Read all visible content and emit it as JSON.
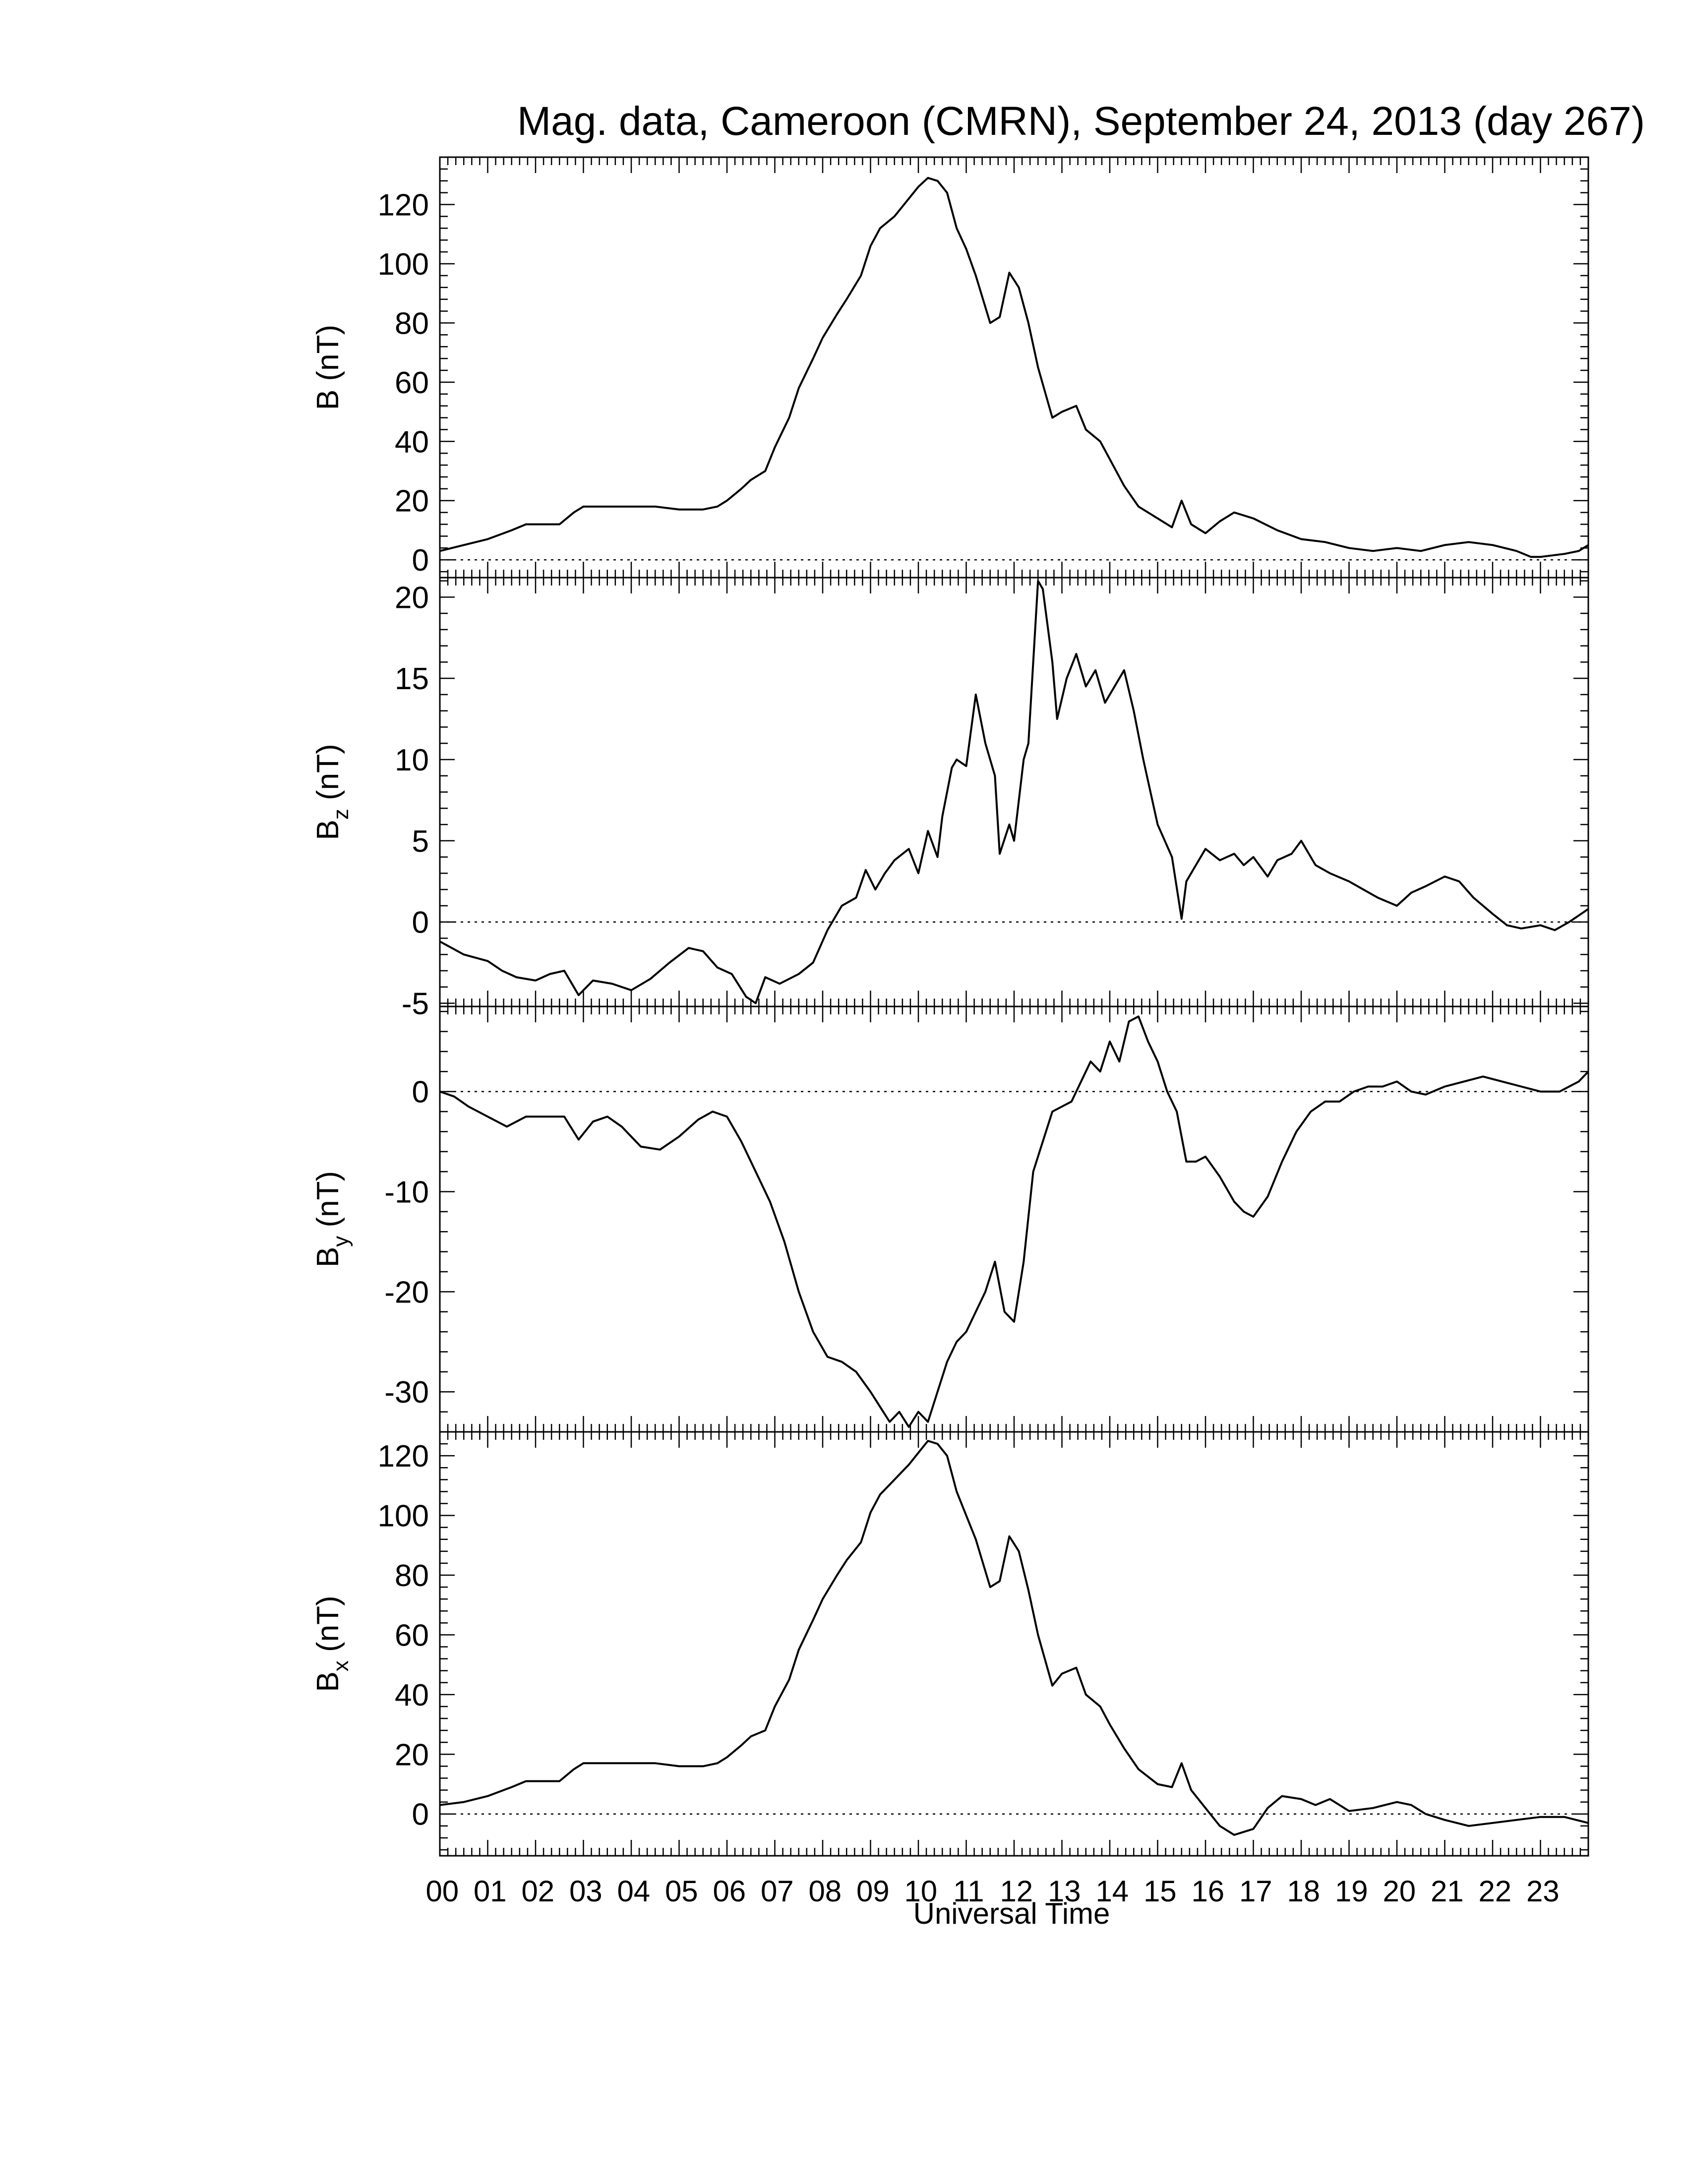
{
  "page": {
    "title": "Mag. data, Cameroon (CMRN), September 24, 2013 (day 267)"
  },
  "chart_data": {
    "type": "line",
    "title": "Mag. data, Cameroon (CMRN), September 24, 2013 (day 267)",
    "xlabel": "Universal Time",
    "xlim": [
      0,
      24
    ],
    "x_tick_labels": [
      "00",
      "01",
      "02",
      "03",
      "04",
      "05",
      "06",
      "07",
      "08",
      "09",
      "10",
      "11",
      "12",
      "13",
      "14",
      "15",
      "16",
      "17",
      "18",
      "19",
      "20",
      "21",
      "22",
      "23"
    ],
    "line_color": "#000000",
    "zero_line": "dotted",
    "panels": [
      {
        "ylabel": "B (nT)",
        "ylabel_main": "B",
        "ylabel_sub": "",
        "ylim": [
          -6,
          136
        ],
        "yticks": [
          0,
          20,
          40,
          60,
          80,
          100,
          120
        ],
        "ytick_labels": [
          "0",
          "20",
          "40",
          "60",
          "80",
          "100",
          "120"
        ],
        "series": [
          {
            "x": [
              0,
              0.5,
              1,
              1.5,
              1.8,
              2,
              2.5,
              2.8,
              3,
              3.5,
              4,
              4.5,
              5,
              5.5,
              5.8,
              6,
              6.3,
              6.5,
              6.8,
              7,
              7.3,
              7.5,
              7.8,
              8,
              8.3,
              8.5,
              8.8,
              9,
              9.2,
              9.5,
              9.8,
              10,
              10.2,
              10.4,
              10.6,
              10.8,
              11,
              11.2,
              11.5,
              11.7,
              11.9,
              12.1,
              12.3,
              12.5,
              12.8,
              13,
              13.3,
              13.5,
              13.8,
              14,
              14.3,
              14.6,
              15,
              15.3,
              15.5,
              15.7,
              16,
              16.3,
              16.6,
              17,
              17.5,
              18,
              18.5,
              19,
              19.5,
              20,
              20.5,
              21,
              21.5,
              22,
              22.5,
              22.8,
              23,
              23.5,
              23.8,
              24
            ],
            "y": [
              3,
              5,
              7,
              10,
              12,
              12,
              12,
              16,
              18,
              18,
              18,
              18,
              17,
              17,
              18,
              20,
              24,
              27,
              30,
              38,
              48,
              58,
              68,
              75,
              83,
              88,
              96,
              106,
              112,
              116,
              122,
              126,
              129,
              128,
              124,
              112,
              105,
              96,
              80,
              82,
              97,
              92,
              80,
              65,
              48,
              50,
              52,
              44,
              40,
              34,
              25,
              18,
              14,
              11,
              20,
              12,
              9,
              13,
              16,
              14,
              10,
              7,
              6,
              4,
              3,
              4,
              3,
              5,
              6,
              5,
              3,
              1,
              1,
              2,
              3,
              5
            ]
          }
        ]
      },
      {
        "ylabel": "Bz (nT)",
        "ylabel_main": "B",
        "ylabel_sub": "z",
        "ylim": [
          -5.2,
          21.2
        ],
        "yticks": [
          -5,
          0,
          5,
          10,
          15,
          20
        ],
        "ytick_labels": [
          "-5",
          "0",
          "5",
          "10",
          "15",
          "20"
        ],
        "series": [
          {
            "x": [
              0,
              0.5,
              1,
              1.3,
              1.6,
              2,
              2.3,
              2.6,
              2.9,
              3.2,
              3.6,
              4,
              4.4,
              4.8,
              5.2,
              5.5,
              5.8,
              6.1,
              6.4,
              6.6,
              6.8,
              7.1,
              7.5,
              7.8,
              8.1,
              8.4,
              8.7,
              8.9,
              9.1,
              9.3,
              9.5,
              9.8,
              10,
              10.2,
              10.4,
              10.5,
              10.7,
              10.8,
              11,
              11.2,
              11.4,
              11.6,
              11.7,
              11.9,
              12,
              12.2,
              12.3,
              12.5,
              12.6,
              12.8,
              12.9,
              13.1,
              13.3,
              13.5,
              13.7,
              13.9,
              14.1,
              14.3,
              14.5,
              14.7,
              15,
              15.3,
              15.5,
              15.6,
              15.8,
              16,
              16.3,
              16.6,
              16.8,
              17,
              17.3,
              17.5,
              17.8,
              18,
              18.3,
              18.6,
              19,
              19.3,
              19.6,
              20,
              20.3,
              20.6,
              21,
              21.3,
              21.6,
              22,
              22.3,
              22.6,
              23,
              23.3,
              23.6,
              24
            ],
            "y": [
              -1.2,
              -2,
              -2.4,
              -3,
              -3.4,
              -3.6,
              -3.2,
              -3,
              -4.5,
              -3.6,
              -3.8,
              -4.2,
              -3.5,
              -2.5,
              -1.6,
              -1.8,
              -2.8,
              -3.2,
              -4.6,
              -5,
              -3.4,
              -3.8,
              -3.2,
              -2.5,
              -0.5,
              1,
              1.5,
              3.2,
              2,
              3,
              3.8,
              4.5,
              3,
              5.6,
              4,
              6.5,
              9.5,
              10,
              9.6,
              14,
              11,
              9,
              4.2,
              6,
              5,
              10,
              11,
              21,
              20.5,
              16,
              12.5,
              15,
              16.5,
              14.5,
              15.5,
              13.5,
              14.5,
              15.5,
              13,
              10,
              6,
              4,
              0.2,
              2.5,
              3.5,
              4.5,
              3.8,
              4.2,
              3.5,
              4,
              2.8,
              3.8,
              4.2,
              5,
              3.5,
              3,
              2.5,
              2,
              1.5,
              1,
              1.8,
              2.2,
              2.8,
              2.5,
              1.5,
              0.5,
              -0.2,
              -0.4,
              -0.2,
              -0.5,
              0,
              0.8
            ]
          }
        ]
      },
      {
        "ylabel": "By (nT)",
        "ylabel_main": "B",
        "ylabel_sub": "y",
        "ylim": [
          -34,
          8.5
        ],
        "yticks": [
          -30,
          -20,
          -10,
          0
        ],
        "ytick_labels": [
          "-30",
          "-20",
          "-10",
          "0"
        ],
        "series": [
          {
            "x": [
              0,
              0.3,
              0.6,
              1,
              1.4,
              1.8,
              2.2,
              2.6,
              2.9,
              3.2,
              3.5,
              3.8,
              4.2,
              4.6,
              5,
              5.4,
              5.7,
              6,
              6.3,
              6.6,
              6.9,
              7.2,
              7.5,
              7.8,
              8.1,
              8.4,
              8.7,
              9,
              9.2,
              9.4,
              9.6,
              9.8,
              10,
              10.2,
              10.4,
              10.6,
              10.8,
              11,
              11.2,
              11.4,
              11.6,
              11.8,
              12,
              12.2,
              12.4,
              12.6,
              12.8,
              13,
              13.2,
              13.4,
              13.6,
              13.8,
              14,
              14.2,
              14.4,
              14.6,
              14.8,
              15,
              15.2,
              15.4,
              15.6,
              15.8,
              16,
              16.3,
              16.6,
              16.8,
              17,
              17.3,
              17.6,
              17.9,
              18.2,
              18.5,
              18.8,
              19.1,
              19.4,
              19.7,
              20,
              20.3,
              20.6,
              21,
              21.4,
              21.8,
              22.2,
              22.6,
              23,
              23.4,
              23.8,
              24
            ],
            "y": [
              0,
              -0.5,
              -1.5,
              -2.5,
              -3.5,
              -2.5,
              -2.5,
              -2.5,
              -4.8,
              -3,
              -2.5,
              -3.5,
              -5.5,
              -5.8,
              -4.5,
              -2.8,
              -2,
              -2.5,
              -5,
              -8,
              -11,
              -15,
              -20,
              -24,
              -26.5,
              -27,
              -28,
              -30,
              -31.5,
              -33,
              -32,
              -33.5,
              -32,
              -33,
              -30,
              -27,
              -25,
              -24,
              -22,
              -20,
              -17,
              -22,
              -23,
              -17,
              -8,
              -5,
              -2,
              -1.5,
              -1,
              1,
              3,
              2,
              5,
              3,
              7,
              7.5,
              5,
              3,
              0,
              -2,
              -7,
              -7,
              -6.5,
              -8.5,
              -11,
              -12,
              -12.5,
              -10.5,
              -7,
              -4,
              -2,
              -1,
              -1,
              0,
              0.5,
              0.5,
              1,
              0,
              -0.3,
              0.5,
              1,
              1.5,
              1,
              0.5,
              0,
              0,
              1,
              2
            ]
          }
        ]
      },
      {
        "ylabel": "Bx (nT)",
        "ylabel_main": "B",
        "ylabel_sub": "x",
        "ylim": [
          -14,
          128
        ],
        "yticks": [
          0,
          20,
          40,
          60,
          80,
          100,
          120
        ],
        "ytick_labels": [
          "0",
          "20",
          "40",
          "60",
          "80",
          "100",
          "120"
        ],
        "series": [
          {
            "x": [
              0,
              0.5,
              1,
              1.5,
              1.8,
              2,
              2.5,
              2.8,
              3,
              3.5,
              4,
              4.5,
              5,
              5.5,
              5.8,
              6,
              6.3,
              6.5,
              6.8,
              7,
              7.3,
              7.5,
              7.8,
              8,
              8.3,
              8.5,
              8.8,
              9,
              9.2,
              9.5,
              9.8,
              10,
              10.2,
              10.4,
              10.6,
              10.8,
              11,
              11.2,
              11.5,
              11.7,
              11.9,
              12.1,
              12.3,
              12.5,
              12.8,
              13,
              13.3,
              13.5,
              13.8,
              14,
              14.3,
              14.6,
              15,
              15.3,
              15.5,
              15.7,
              16,
              16.3,
              16.6,
              17,
              17.3,
              17.6,
              18,
              18.3,
              18.6,
              19,
              19.5,
              20,
              20.3,
              20.6,
              21,
              21.5,
              22,
              22.5,
              23,
              23.5,
              24
            ],
            "y": [
              3,
              4,
              6,
              9,
              11,
              11,
              11,
              15,
              17,
              17,
              17,
              17,
              16,
              16,
              17,
              19,
              23,
              26,
              28,
              36,
              45,
              55,
              65,
              72,
              80,
              85,
              91,
              101,
              107,
              112,
              117,
              121,
              125,
              124,
              120,
              108,
              100,
              92,
              76,
              78,
              93,
              88,
              75,
              60,
              43,
              47,
              49,
              40,
              36,
              30,
              22,
              15,
              10,
              9,
              17,
              8,
              2,
              -4,
              -7,
              -5,
              2,
              6,
              5,
              3,
              5,
              1,
              2,
              4,
              3,
              0,
              -2,
              -4,
              -3,
              -2,
              -1,
              -1,
              -3
            ]
          }
        ]
      }
    ]
  }
}
